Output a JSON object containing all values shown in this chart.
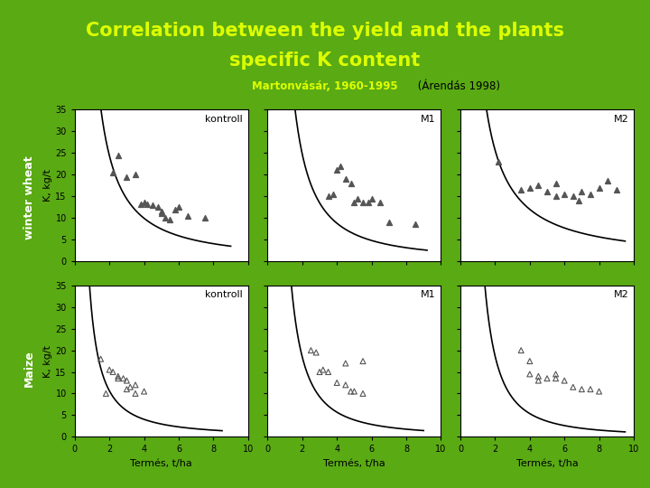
{
  "title_line1": "Correlation between the yield and the plants",
  "title_line2": "specific K content",
  "subtitle_bold": "Martonvásár, 1960-1995",
  "subtitle_normal": " (Árendás 1998)",
  "title_color": "#DDFF00",
  "background_color": "#5AAA14",
  "ylabel": "K, kg/t",
  "xlabel": "Termés, t/ha",
  "col_labels": [
    "kontroll",
    "M1",
    "M2"
  ],
  "ylim": [
    0,
    35
  ],
  "xlim": [
    0,
    10
  ],
  "yticks": [
    0,
    5,
    10,
    15,
    20,
    25,
    30,
    35
  ],
  "xticks": [
    0,
    2,
    4,
    6,
    8,
    10
  ],
  "ww_kontroll_pts": [
    [
      2.2,
      20.5
    ],
    [
      2.5,
      24.5
    ],
    [
      3.0,
      19.5
    ],
    [
      3.5,
      20.0
    ],
    [
      3.8,
      13.2
    ],
    [
      4.0,
      13.5
    ],
    [
      4.2,
      13.2
    ],
    [
      4.5,
      13.0
    ],
    [
      4.8,
      12.5
    ],
    [
      5.0,
      11.5
    ],
    [
      5.0,
      11.0
    ],
    [
      5.2,
      10.0
    ],
    [
      5.5,
      9.5
    ],
    [
      5.8,
      12.0
    ],
    [
      6.0,
      12.5
    ],
    [
      6.5,
      10.5
    ],
    [
      7.5,
      10.0
    ]
  ],
  "ww_M1_pts": [
    [
      3.5,
      15.0
    ],
    [
      3.8,
      15.5
    ],
    [
      4.0,
      21.0
    ],
    [
      4.2,
      22.0
    ],
    [
      4.5,
      19.0
    ],
    [
      4.8,
      18.0
    ],
    [
      5.0,
      13.5
    ],
    [
      5.2,
      14.5
    ],
    [
      5.5,
      13.5
    ],
    [
      5.8,
      13.5
    ],
    [
      6.0,
      14.5
    ],
    [
      6.5,
      13.5
    ],
    [
      7.0,
      9.0
    ],
    [
      8.5,
      8.5
    ]
  ],
  "ww_M2_pts": [
    [
      2.2,
      23.0
    ],
    [
      3.5,
      16.5
    ],
    [
      4.0,
      17.0
    ],
    [
      4.5,
      17.5
    ],
    [
      5.0,
      16.0
    ],
    [
      5.5,
      15.0
    ],
    [
      5.5,
      18.0
    ],
    [
      6.0,
      15.5
    ],
    [
      6.5,
      15.0
    ],
    [
      6.8,
      14.0
    ],
    [
      7.0,
      16.0
    ],
    [
      7.5,
      15.5
    ],
    [
      8.0,
      17.0
    ],
    [
      8.5,
      18.5
    ],
    [
      9.0,
      16.5
    ]
  ],
  "mz_kontroll_pts": [
    [
      1.5,
      18.0
    ],
    [
      2.0,
      15.5
    ],
    [
      2.2,
      15.0
    ],
    [
      2.5,
      13.5
    ],
    [
      2.5,
      14.0
    ],
    [
      2.8,
      13.5
    ],
    [
      3.0,
      13.0
    ],
    [
      3.0,
      11.0
    ],
    [
      3.2,
      11.5
    ],
    [
      3.5,
      12.0
    ],
    [
      3.5,
      10.0
    ],
    [
      4.0,
      10.5
    ],
    [
      1.8,
      10.0
    ]
  ],
  "mz_M1_pts": [
    [
      2.5,
      20.0
    ],
    [
      2.8,
      19.5
    ],
    [
      3.0,
      15.0
    ],
    [
      3.2,
      15.5
    ],
    [
      3.5,
      15.0
    ],
    [
      4.0,
      12.5
    ],
    [
      4.5,
      12.0
    ],
    [
      4.8,
      10.5
    ],
    [
      5.0,
      10.5
    ],
    [
      5.5,
      10.0
    ],
    [
      4.5,
      17.0
    ],
    [
      5.5,
      17.5
    ]
  ],
  "mz_M2_pts": [
    [
      3.5,
      20.0
    ],
    [
      4.0,
      17.5
    ],
    [
      4.0,
      14.5
    ],
    [
      4.5,
      14.0
    ],
    [
      4.5,
      13.0
    ],
    [
      5.0,
      13.5
    ],
    [
      5.5,
      13.5
    ],
    [
      5.5,
      14.5
    ],
    [
      6.0,
      13.0
    ],
    [
      6.5,
      11.5
    ],
    [
      7.0,
      11.0
    ],
    [
      7.5,
      11.0
    ],
    [
      8.0,
      10.5
    ]
  ],
  "curve_params": [
    [
      60.0,
      1.3,
      1.5,
      9.0
    ],
    [
      70.0,
      1.5,
      1.5,
      9.2
    ],
    [
      55.0,
      1.1,
      1.5,
      9.5
    ],
    [
      28.0,
      1.4,
      0.8,
      8.5
    ],
    [
      60.0,
      1.7,
      0.8,
      9.0
    ],
    [
      65.0,
      1.8,
      0.9,
      9.5
    ]
  ]
}
